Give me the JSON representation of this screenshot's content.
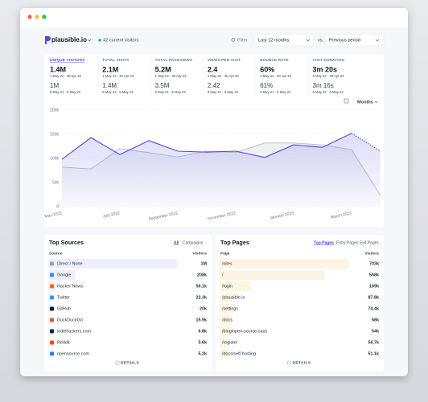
{
  "header": {
    "site": "plausible.io",
    "current_visitors": "42 current visitors",
    "filter": "Filter",
    "period": "Last 12 months",
    "vs": "vs.",
    "comparison": "Previous period"
  },
  "stats": [
    {
      "label": "UNIQUE VISITORS",
      "value": "1.4M",
      "range": "1 May 22 - 30 Apr 23",
      "previous": "1M",
      "previous_range": "9 May 21 - 5 May 22"
    },
    {
      "label": "TOTAL VISITS",
      "value": "2.1M",
      "range": "1 May 22 - 30 Apr 23",
      "previous": "1.4M",
      "previous_range": "9 May 21 - 5 May 22"
    },
    {
      "label": "TOTAL PAGEVIEWS",
      "value": "5.2M",
      "range": "1 May 22 - 30 Apr 23",
      "previous": "3.5M",
      "previous_range": "9 May 21 - 5 May 22"
    },
    {
      "label": "VIEWS PER VISIT",
      "value": "2.4",
      "range": "1 May 22 - 30 Apr 23",
      "previous": "2.42",
      "previous_range": "9 May 21 - 5 May 22"
    },
    {
      "label": "BOUNCE RATE",
      "value": "60%",
      "range": "1 May 22 - 30 Apr 23",
      "previous": "61%",
      "previous_range": "9 May 21 - 5 May 22"
    },
    {
      "label": "VISIT DURATION",
      "value": "3m 20s",
      "range": "1 May 22 - 30 Apr 23",
      "previous": "3m 16s",
      "previous_range": "9 May 21 - 5 May 22"
    }
  ],
  "chart": {
    "type": "line",
    "interval": "Months",
    "x": [
      "May 2022",
      null,
      "July 2022",
      null,
      "September 2022",
      null,
      "November 2022",
      null,
      "January 2023",
      null,
      "March 2023",
      null
    ],
    "series": [
      {
        "color": "#4f46e5",
        "values": [
          98000,
          143000,
          108000,
          137000,
          115000,
          113000,
          115000,
          102000,
          128000,
          123000,
          152000,
          115000
        ]
      },
      {
        "color": "#b8bccb",
        "values": [
          82000,
          78000,
          120000,
          112000,
          103000,
          115000,
          112000,
          132000,
          132000,
          128000,
          118000,
          23000
        ]
      }
    ],
    "ylim": [
      0,
      200000
    ],
    "yticks": [
      {
        "value": 0,
        "label": "0"
      },
      {
        "value": 50000,
        "label": "50k"
      },
      {
        "value": 100000,
        "label": "100k"
      },
      {
        "value": 150000,
        "label": "150k"
      },
      {
        "value": 200000,
        "label": "200k"
      }
    ]
  },
  "top_sources": {
    "title": "Top Sources",
    "tabs": [
      "All",
      "Campaigns"
    ],
    "columns": [
      "Source",
      "Visitors"
    ],
    "rows": [
      {
        "name": "Direct / None",
        "value": 1000000,
        "value_label": "1M"
      },
      {
        "name": "Google",
        "value": 208000,
        "value_label": "208k"
      },
      {
        "name": "Hacker News",
        "value": 56100,
        "value_label": "56.1k"
      },
      {
        "name": "Twitter",
        "value": 22300,
        "value_label": "22.3k"
      },
      {
        "name": "GitHub",
        "value": 20000,
        "value_label": "20k"
      },
      {
        "name": "DuckDuckGo",
        "value": 15900,
        "value_label": "15.9k"
      },
      {
        "name": "indiehackers.com",
        "value": 6800,
        "value_label": "6.8k"
      },
      {
        "name": "Reddit",
        "value": 5600,
        "value_label": "5.6k"
      },
      {
        "name": "opensource.com",
        "value": 5200,
        "value_label": "5.2k"
      }
    ],
    "details": "DETAILS"
  },
  "top_pages": {
    "title": "Top Pages",
    "tabs": [
      "Top Pages",
      "Entry Pages",
      "Exit Pages"
    ],
    "columns": [
      "Page",
      "Visitors"
    ],
    "rows": [
      {
        "name": "/sites",
        "value": 703000,
        "value_label": "703k"
      },
      {
        "name": "/",
        "value": 568000,
        "value_label": "568k"
      },
      {
        "name": "/login",
        "value": 169000,
        "value_label": "169k"
      },
      {
        "name": "/plausible.io",
        "value": 87800,
        "value_label": "87.8k"
      },
      {
        "name": "/settings",
        "value": 74400,
        "value_label": "74.4k"
      },
      {
        "name": "/docs",
        "value": 68000,
        "value_label": "68k"
      },
      {
        "name": "/blog/open-source-saas",
        "value": 64000,
        "value_label": "64k"
      },
      {
        "name": "/register",
        "value": 56700,
        "value_label": "56.7k"
      },
      {
        "name": "/docs/self-hosting",
        "value": 51100,
        "value_label": "51.1k"
      }
    ],
    "details": "DETAILS"
  }
}
